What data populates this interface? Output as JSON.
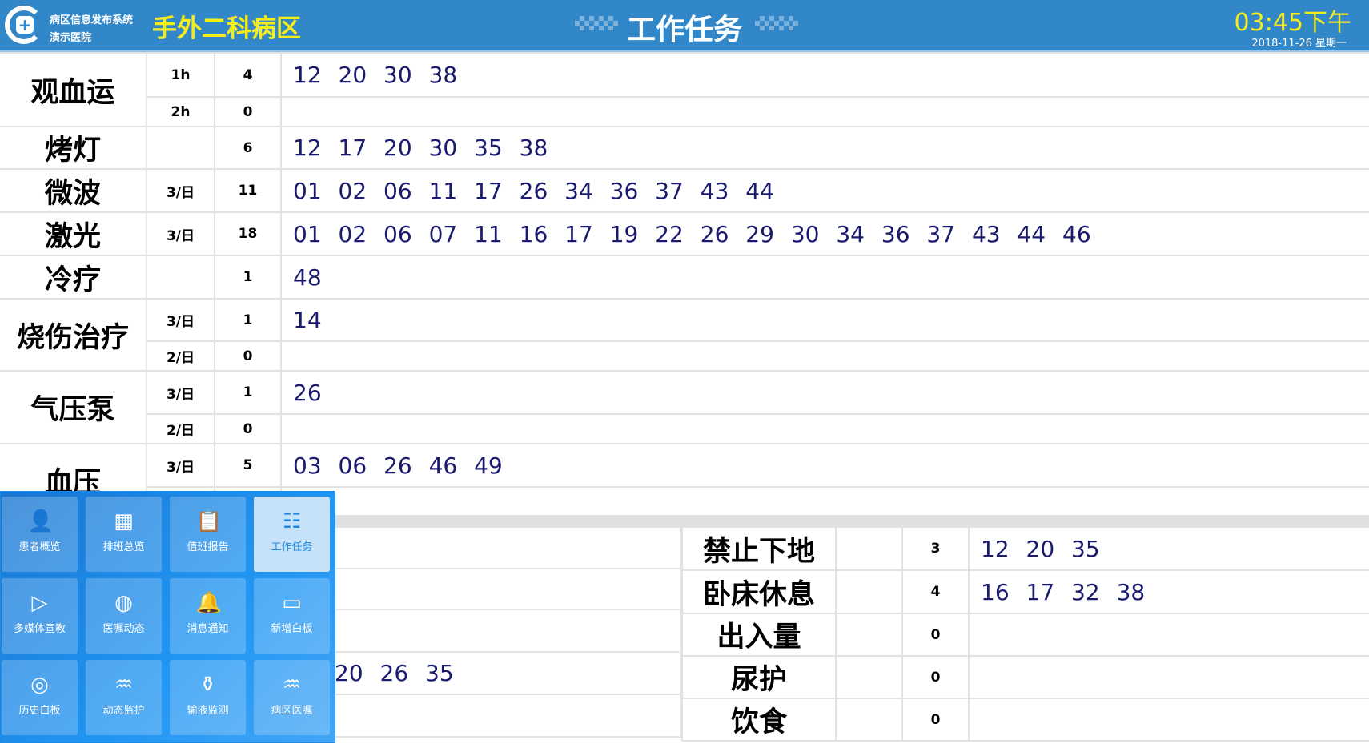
{
  "header": {
    "system_name": "病区信息发布系统",
    "hospital": "演示医院",
    "ward": "手外二科病区",
    "title": "工作任务",
    "time": "03:45下午",
    "date": "2018-11-26  星期一"
  },
  "tasks": [
    {
      "name": "观血运",
      "rows": [
        {
          "freq": "1h",
          "count": "4",
          "beds": "12 20 30 38"
        },
        {
          "freq": "2h",
          "count": "0",
          "beds": ""
        }
      ]
    },
    {
      "name": "烤灯",
      "rows": [
        {
          "freq": "",
          "count": "6",
          "beds": "12 17 20 30 35 38"
        }
      ]
    },
    {
      "name": "微波",
      "rows": [
        {
          "freq": "3/日",
          "count": "11",
          "beds": "01 02 06 11 17 26 34 36 37 43 44"
        }
      ]
    },
    {
      "name": "激光",
      "rows": [
        {
          "freq": "3/日",
          "count": "18",
          "beds": "01 02 06 07 11 16 17 19 22 26 29 30 34 36 37 43 44 46"
        }
      ]
    },
    {
      "name": "冷疗",
      "rows": [
        {
          "freq": "",
          "count": "1",
          "beds": "48"
        }
      ]
    },
    {
      "name": "烧伤治疗",
      "rows": [
        {
          "freq": "3/日",
          "count": "1",
          "beds": "14"
        },
        {
          "freq": "2/日",
          "count": "0",
          "beds": ""
        }
      ]
    },
    {
      "name": "气压泵",
      "rows": [
        {
          "freq": "3/日",
          "count": "1",
          "beds": "26"
        },
        {
          "freq": "2/日",
          "count": "0",
          "beds": ""
        }
      ]
    },
    {
      "name": "血压",
      "rows": [
        {
          "freq": "3/日",
          "count": "5",
          "beds": "03 06 26 46 49"
        },
        {
          "freq": "",
          "count": "",
          "beds": ""
        }
      ]
    }
  ],
  "bottom_left": [
    {
      "beds": ""
    },
    {
      "beds": ""
    },
    {
      "beds": ""
    },
    {
      "beds": "20 26 35"
    },
    {
      "beds": ""
    }
  ],
  "bottom_right": [
    {
      "name": "禁止下地",
      "freq": "",
      "count": "3",
      "beds": "12 20 35"
    },
    {
      "name": "卧床休息",
      "freq": "",
      "count": "4",
      "beds": "16 17 32 38"
    },
    {
      "name": "出入量",
      "freq": "",
      "count": "0",
      "beds": ""
    },
    {
      "name": "尿护",
      "freq": "",
      "count": "0",
      "beds": ""
    },
    {
      "name": "饮食",
      "freq": "",
      "count": "0",
      "beds": ""
    }
  ],
  "menu": [
    {
      "label": "患者概览",
      "icon": "patient-icon",
      "glyph": "👤"
    },
    {
      "label": "排班总览",
      "icon": "calendar-icon",
      "glyph": "▦"
    },
    {
      "label": "值班报告",
      "icon": "clipboard-icon",
      "glyph": "📋"
    },
    {
      "label": "工作任务",
      "icon": "task-tree-icon",
      "glyph": "☷",
      "active": true
    },
    {
      "label": "多媒体宣教",
      "icon": "video-play-icon",
      "glyph": "▷"
    },
    {
      "label": "医嘱动态",
      "icon": "medicine-icon",
      "glyph": "◍"
    },
    {
      "label": "消息通知",
      "icon": "bell-icon",
      "glyph": "🔔"
    },
    {
      "label": "新增白板",
      "icon": "whiteboard-icon",
      "glyph": "▭"
    },
    {
      "label": "历史白板",
      "icon": "history-board-icon",
      "glyph": "◎"
    },
    {
      "label": "动态监护",
      "icon": "monitor-icon",
      "glyph": "♒"
    },
    {
      "label": "输液监测",
      "icon": "infusion-icon",
      "glyph": "⚱"
    },
    {
      "label": "病区医嘱",
      "icon": "ward-monitor-icon",
      "glyph": "♒"
    }
  ],
  "colors": {
    "header": "#3287c9",
    "ward_text": "#f5ec1a",
    "bed_numbers": "#1a1a6e",
    "active_tile": "#c6e2f8"
  }
}
